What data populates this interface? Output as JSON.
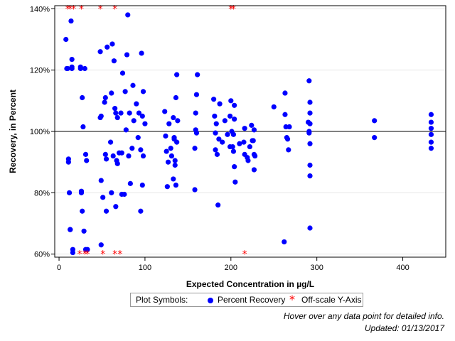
{
  "chart_data": {
    "type": "scatter",
    "xlabel": "Expected Concentration in µg/L",
    "ylabel": "Recovery, in Percent",
    "xlim": [
      -5,
      450
    ],
    "ylim": [
      59,
      141
    ],
    "x_ticks": [
      0,
      100,
      200,
      300,
      400
    ],
    "y_ticks": [
      60,
      80,
      100,
      120,
      140
    ],
    "y_tick_labels": [
      "60%",
      "80%",
      "100%",
      "120%",
      "140%"
    ],
    "reference_line": 100,
    "grid": "horizontal",
    "legend_placement": "bottom",
    "colors": {
      "percent_recovery": "#0000ff",
      "off_scale": "#ff0000",
      "grid": "#e6e6e6"
    },
    "series": [
      {
        "name": "Percent Recovery",
        "symbol": "dot",
        "points": [
          [
            8,
            130
          ],
          [
            9,
            120.5
          ],
          [
            10,
            120.5
          ],
          [
            11,
            91
          ],
          [
            11,
            90
          ],
          [
            12,
            80
          ],
          [
            13,
            68
          ],
          [
            13,
            68
          ],
          [
            14,
            136
          ],
          [
            15,
            123.5
          ],
          [
            15,
            121
          ],
          [
            15,
            120.5
          ],
          [
            16,
            61.5
          ],
          [
            16,
            60.5
          ],
          [
            25,
            121
          ],
          [
            25,
            120.5
          ],
          [
            26,
            80.5
          ],
          [
            26,
            80
          ],
          [
            27,
            74
          ],
          [
            27,
            111
          ],
          [
            28,
            101.5
          ],
          [
            29,
            67.5
          ],
          [
            30,
            120.5
          ],
          [
            31,
            92.5
          ],
          [
            32,
            90.5
          ],
          [
            31,
            61.5
          ],
          [
            33,
            61.5
          ],
          [
            48,
            126
          ],
          [
            48,
            104.5
          ],
          [
            49,
            105
          ],
          [
            49,
            84
          ],
          [
            49,
            63
          ],
          [
            51,
            78.5
          ],
          [
            53,
            109.5
          ],
          [
            54,
            111
          ],
          [
            54,
            92.5
          ],
          [
            55,
            91
          ],
          [
            55,
            74
          ],
          [
            56,
            127.5
          ],
          [
            60,
            96.5
          ],
          [
            61,
            80
          ],
          [
            61,
            112.5
          ],
          [
            62,
            128.5
          ],
          [
            63,
            92
          ],
          [
            64,
            123
          ],
          [
            65,
            107.5
          ],
          [
            66,
            106
          ],
          [
            66,
            75.5
          ],
          [
            67,
            90.5
          ],
          [
            68,
            89.5
          ],
          [
            68,
            104.5
          ],
          [
            70,
            93
          ],
          [
            72,
            106
          ],
          [
            73,
            79.5
          ],
          [
            73,
            93
          ],
          [
            74,
            119
          ],
          [
            76,
            79.5
          ],
          [
            77,
            113
          ],
          [
            78,
            100.5
          ],
          [
            79,
            125
          ],
          [
            80,
            138
          ],
          [
            81,
            92
          ],
          [
            82,
            106
          ],
          [
            83,
            83
          ],
          [
            85,
            94.5
          ],
          [
            86,
            115
          ],
          [
            87,
            103.5
          ],
          [
            90,
            109
          ],
          [
            92,
            98
          ],
          [
            93,
            106
          ],
          [
            95,
            74
          ],
          [
            95,
            94
          ],
          [
            96,
            125.5
          ],
          [
            97,
            105
          ],
          [
            97,
            82.5
          ],
          [
            98,
            113
          ],
          [
            98,
            92
          ],
          [
            100,
            102.5
          ],
          [
            123,
            106.5
          ],
          [
            124,
            98.5
          ],
          [
            125,
            93.5
          ],
          [
            126,
            82
          ],
          [
            127,
            90
          ],
          [
            128,
            102.5
          ],
          [
            130,
            94.5
          ],
          [
            131,
            92
          ],
          [
            133,
            84.5
          ],
          [
            133,
            104.5
          ],
          [
            134,
            98
          ],
          [
            134,
            97.5
          ],
          [
            135,
            90.5
          ],
          [
            135,
            89
          ],
          [
            136,
            82.5
          ],
          [
            136,
            111
          ],
          [
            137,
            118.5
          ],
          [
            137,
            96.5
          ],
          [
            138,
            103.5
          ],
          [
            158,
            81
          ],
          [
            158,
            94.5
          ],
          [
            159,
            106
          ],
          [
            159,
            100.5
          ],
          [
            160,
            99.5
          ],
          [
            160,
            112
          ],
          [
            161,
            118.5
          ],
          [
            180,
            110.5
          ],
          [
            181,
            105
          ],
          [
            182,
            99.5
          ],
          [
            182,
            94
          ],
          [
            183,
            102.5
          ],
          [
            184,
            92.5
          ],
          [
            185,
            76
          ],
          [
            186,
            97.5
          ],
          [
            187,
            109
          ],
          [
            190,
            96.5
          ],
          [
            193,
            103.5
          ],
          [
            196,
            99
          ],
          [
            199,
            95
          ],
          [
            199,
            105
          ],
          [
            200,
            110
          ],
          [
            201,
            100
          ],
          [
            202,
            95
          ],
          [
            203,
            99
          ],
          [
            203,
            93.5
          ],
          [
            204,
            108.5
          ],
          [
            204,
            104
          ],
          [
            204,
            88.5
          ],
          [
            205,
            83.5
          ],
          [
            210,
            96
          ],
          [
            215,
            96.5
          ],
          [
            216,
            92.5
          ],
          [
            216,
            101
          ],
          [
            219,
            91.5
          ],
          [
            220,
            90.5
          ],
          [
            222,
            95
          ],
          [
            224,
            102
          ],
          [
            225,
            97
          ],
          [
            226,
            97
          ],
          [
            227,
            100.5
          ],
          [
            227,
            92.5
          ],
          [
            227,
            87.5
          ],
          [
            228,
            92
          ],
          [
            250,
            108
          ],
          [
            262,
            64
          ],
          [
            263,
            112.5
          ],
          [
            263,
            105.5
          ],
          [
            264,
            101.5
          ],
          [
            265,
            98
          ],
          [
            266,
            97.5
          ],
          [
            267,
            94
          ],
          [
            268,
            101.5
          ],
          [
            290,
            103
          ],
          [
            291,
            116.5
          ],
          [
            291,
            100
          ],
          [
            291,
            99.5
          ],
          [
            292,
            109.5
          ],
          [
            292,
            106
          ],
          [
            292,
            102.5
          ],
          [
            292,
            96
          ],
          [
            292,
            89
          ],
          [
            292,
            85.5
          ],
          [
            292,
            68.5
          ],
          [
            367,
            103.5
          ],
          [
            367,
            98
          ],
          [
            433,
            105.5
          ],
          [
            433,
            103
          ],
          [
            433,
            101
          ],
          [
            433,
            99
          ],
          [
            433,
            96.5
          ],
          [
            433,
            94.5
          ]
        ]
      },
      {
        "name": "Off-scale Y-Axis",
        "symbol": "asterisk",
        "points": [
          [
            10,
            140
          ],
          [
            13,
            140
          ],
          [
            17,
            140
          ],
          [
            26,
            140
          ],
          [
            48,
            140
          ],
          [
            65,
            140
          ],
          [
            200,
            140
          ],
          [
            203,
            140
          ],
          [
            24,
            60
          ],
          [
            30,
            60
          ],
          [
            33,
            60
          ],
          [
            51,
            60
          ],
          [
            65,
            60
          ],
          [
            71,
            60
          ],
          [
            216,
            60
          ]
        ]
      }
    ]
  },
  "legend": {
    "title": "Plot Symbols:",
    "items": [
      "Percent Recovery",
      "Off-scale Y-Axis"
    ]
  },
  "footnotes": {
    "hover_hint": "Hover over any data point for detailed info.",
    "updated": "Updated: 01/13/2017"
  }
}
